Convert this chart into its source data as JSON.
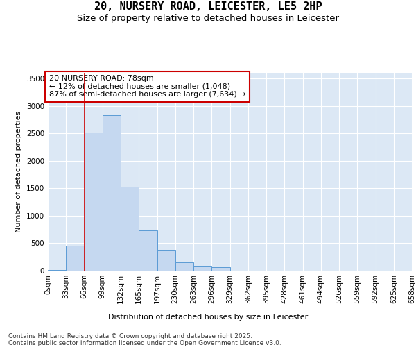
{
  "title_line1": "20, NURSERY ROAD, LEICESTER, LE5 2HP",
  "title_line2": "Size of property relative to detached houses in Leicester",
  "xlabel": "Distribution of detached houses by size in Leicester",
  "ylabel": "Number of detached properties",
  "bar_values": [
    10,
    460,
    2520,
    2830,
    1530,
    730,
    380,
    150,
    80,
    60,
    0,
    0,
    0,
    0,
    0,
    0,
    0,
    0,
    0,
    0
  ],
  "bin_labels": [
    "0sqm",
    "33sqm",
    "66sqm",
    "99sqm",
    "132sqm",
    "165sqm",
    "197sqm",
    "230sqm",
    "263sqm",
    "296sqm",
    "329sqm",
    "362sqm",
    "395sqm",
    "428sqm",
    "461sqm",
    "494sqm",
    "526sqm",
    "559sqm",
    "592sqm",
    "625sqm",
    "658sqm"
  ],
  "bar_color": "#c5d8f0",
  "bar_edge_color": "#5b9bd5",
  "background_color": "#dce8f5",
  "vline_x": 66,
  "vline_color": "#cc0000",
  "annotation_text": "20 NURSERY ROAD: 78sqm\n← 12% of detached houses are smaller (1,048)\n87% of semi-detached houses are larger (7,634) →",
  "annotation_box_color": "#cc0000",
  "ylim": [
    0,
    3600
  ],
  "yticks": [
    0,
    500,
    1000,
    1500,
    2000,
    2500,
    3000,
    3500
  ],
  "bin_width": 33,
  "footnote": "Contains HM Land Registry data © Crown copyright and database right 2025.\nContains public sector information licensed under the Open Government Licence v3.0.",
  "title_fontsize": 11,
  "subtitle_fontsize": 9.5,
  "label_fontsize": 8,
  "tick_fontsize": 7.5,
  "annotation_fontsize": 8,
  "footnote_fontsize": 6.5
}
